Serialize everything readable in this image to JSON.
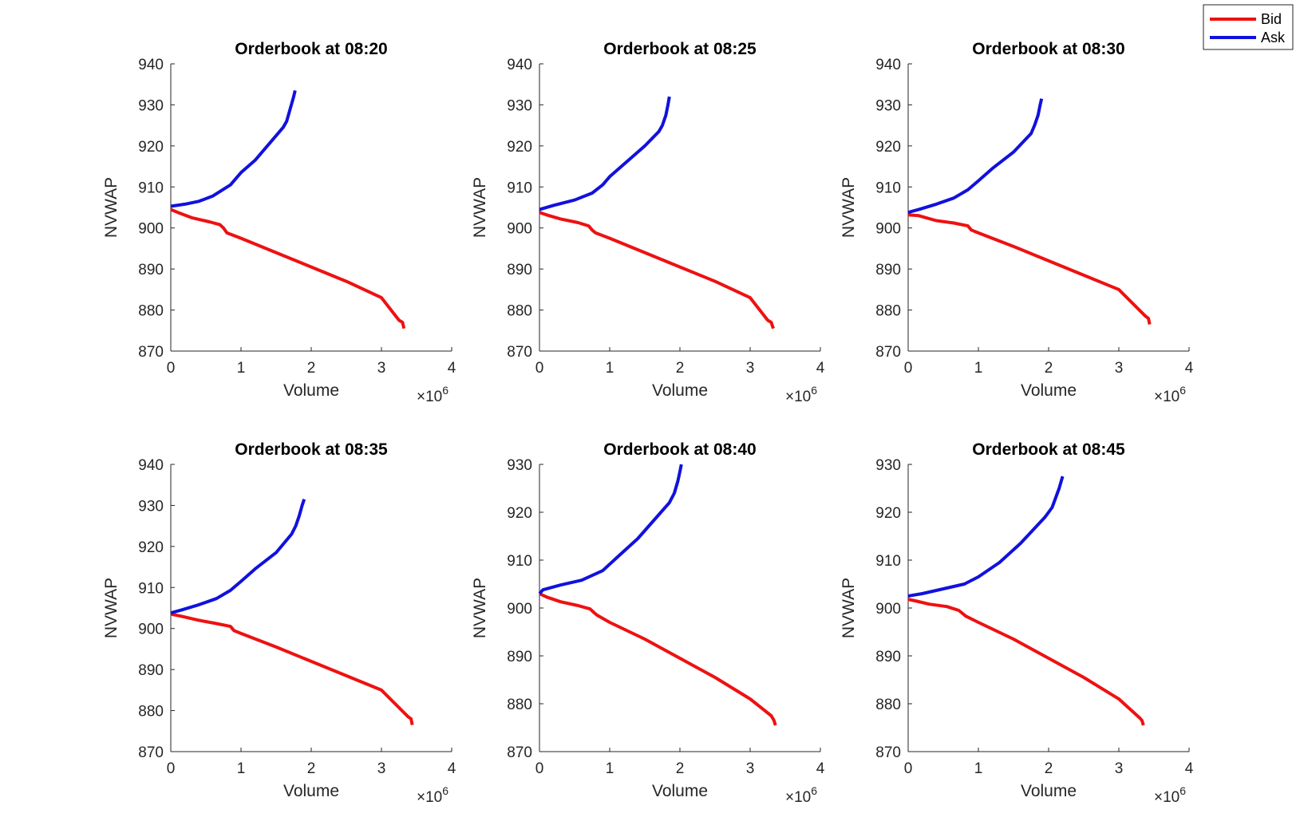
{
  "colors": {
    "bid": "#ee1111",
    "ask": "#1111dd",
    "axis": "#262626",
    "background": "#ffffff"
  },
  "legend": {
    "placement": "top-right",
    "entries": [
      "Bid",
      "Ask"
    ]
  },
  "chart_data": [
    {
      "type": "line",
      "title": "Orderbook at 08:20",
      "xlabel": "Volume",
      "ylabel": "NVWAP",
      "x_multiplier": "×10^6",
      "xlim": [
        0,
        4
      ],
      "ylim": [
        870,
        940
      ],
      "xticks": [
        0,
        1,
        2,
        3,
        4
      ],
      "yticks": [
        870,
        880,
        890,
        900,
        910,
        920,
        930,
        940
      ],
      "grid": false,
      "series": [
        {
          "name": "Bid",
          "x": [
            0,
            0.1,
            0.3,
            0.55,
            0.7,
            0.75,
            0.8,
            1.0,
            1.5,
            2.0,
            2.5,
            3.0,
            3.25,
            3.3,
            3.32
          ],
          "y": [
            904.5,
            903.8,
            902.5,
            901.5,
            900.8,
            900.0,
            898.8,
            897.5,
            894.0,
            890.5,
            887.0,
            883.0,
            877.5,
            877.0,
            875.5
          ]
        },
        {
          "name": "Ask",
          "x": [
            0,
            0.2,
            0.4,
            0.6,
            0.85,
            1.0,
            1.2,
            1.4,
            1.6,
            1.65,
            1.7,
            1.75,
            1.77
          ],
          "y": [
            905.3,
            905.8,
            906.5,
            907.8,
            910.5,
            913.5,
            916.5,
            920.5,
            924.5,
            926.0,
            929.0,
            932.0,
            933.5
          ]
        }
      ]
    },
    {
      "type": "line",
      "title": "Orderbook at 08:25",
      "xlabel": "Volume",
      "ylabel": "NVWAP",
      "x_multiplier": "×10^6",
      "xlim": [
        0,
        4
      ],
      "ylim": [
        870,
        940
      ],
      "xticks": [
        0,
        1,
        2,
        3,
        4
      ],
      "yticks": [
        870,
        880,
        890,
        900,
        910,
        920,
        930,
        940
      ],
      "grid": false,
      "series": [
        {
          "name": "Bid",
          "x": [
            0,
            0.1,
            0.3,
            0.55,
            0.7,
            0.75,
            0.8,
            1.0,
            1.5,
            2.0,
            2.5,
            3.0,
            3.25,
            3.3,
            3.33
          ],
          "y": [
            903.8,
            903.2,
            902.2,
            901.3,
            900.5,
            899.5,
            898.8,
            897.5,
            894.0,
            890.5,
            887.0,
            883.0,
            877.5,
            877.0,
            875.5
          ]
        },
        {
          "name": "Ask",
          "x": [
            0,
            0.2,
            0.5,
            0.75,
            0.9,
            1.0,
            1.2,
            1.5,
            1.7,
            1.75,
            1.8,
            1.83,
            1.85
          ],
          "y": [
            904.5,
            905.5,
            906.8,
            908.5,
            910.5,
            912.5,
            915.5,
            920.0,
            923.5,
            925.0,
            927.5,
            930.0,
            932.0
          ]
        }
      ]
    },
    {
      "type": "line",
      "title": "Orderbook at 08:30",
      "xlabel": "Volume",
      "ylabel": "NVWAP",
      "x_multiplier": "×10^6",
      "xlim": [
        0,
        4
      ],
      "ylim": [
        870,
        940
      ],
      "xticks": [
        0,
        1,
        2,
        3,
        4
      ],
      "yticks": [
        870,
        880,
        890,
        900,
        910,
        920,
        930,
        940
      ],
      "grid": false,
      "series": [
        {
          "name": "Bid",
          "x": [
            0,
            0.15,
            0.4,
            0.65,
            0.85,
            0.9,
            1.0,
            1.5,
            2.0,
            2.5,
            3.0,
            3.38,
            3.42,
            3.44
          ],
          "y": [
            903.2,
            903.0,
            901.8,
            901.2,
            900.5,
            899.5,
            898.8,
            895.5,
            892.0,
            888.5,
            885.0,
            878.5,
            878.0,
            876.5
          ]
        },
        {
          "name": "Ask",
          "x": [
            0,
            0.15,
            0.4,
            0.65,
            0.85,
            1.0,
            1.2,
            1.5,
            1.75,
            1.8,
            1.85,
            1.88,
            1.9
          ],
          "y": [
            903.8,
            904.5,
            905.8,
            907.3,
            909.3,
            911.5,
            914.5,
            918.5,
            923.0,
            925.0,
            927.5,
            930.0,
            931.5
          ]
        }
      ]
    },
    {
      "type": "line",
      "title": "Orderbook at 08:35",
      "xlabel": "Volume",
      "ylabel": "NVWAP",
      "x_multiplier": "×10^6",
      "xlim": [
        0,
        4
      ],
      "ylim": [
        870,
        940
      ],
      "xticks": [
        0,
        1,
        2,
        3,
        4
      ],
      "yticks": [
        870,
        880,
        890,
        900,
        910,
        920,
        930,
        940
      ],
      "grid": false,
      "series": [
        {
          "name": "Bid",
          "x": [
            0,
            0.15,
            0.4,
            0.65,
            0.85,
            0.9,
            1.0,
            1.5,
            2.0,
            2.5,
            3.0,
            3.38,
            3.42,
            3.44
          ],
          "y": [
            903.5,
            903.0,
            902.0,
            901.2,
            900.5,
            899.5,
            898.8,
            895.5,
            892.0,
            888.5,
            885.0,
            878.5,
            878.0,
            876.5
          ]
        },
        {
          "name": "Ask",
          "x": [
            0,
            0.15,
            0.4,
            0.65,
            0.85,
            1.0,
            1.2,
            1.5,
            1.72,
            1.78,
            1.83,
            1.87,
            1.9
          ],
          "y": [
            903.8,
            904.5,
            905.8,
            907.3,
            909.3,
            911.5,
            914.5,
            918.5,
            923.0,
            925.0,
            927.5,
            930.0,
            931.5
          ]
        }
      ]
    },
    {
      "type": "line",
      "title": "Orderbook at 08:40",
      "xlabel": "Volume",
      "ylabel": "NVWAP",
      "x_multiplier": "×10^6",
      "xlim": [
        0,
        4
      ],
      "ylim": [
        870,
        930
      ],
      "xticks": [
        0,
        1,
        2,
        3,
        4
      ],
      "yticks": [
        870,
        880,
        890,
        900,
        910,
        920,
        930
      ],
      "grid": false,
      "series": [
        {
          "name": "Bid",
          "x": [
            0,
            0.1,
            0.3,
            0.55,
            0.72,
            0.78,
            0.82,
            1.0,
            1.5,
            2.0,
            2.5,
            3.0,
            3.3,
            3.34,
            3.36
          ],
          "y": [
            903.0,
            902.3,
            901.3,
            900.5,
            899.8,
            899.0,
            898.5,
            897.0,
            893.5,
            889.5,
            885.5,
            881.0,
            877.5,
            876.5,
            875.5
          ]
        },
        {
          "name": "Ask",
          "x": [
            0,
            0.05,
            0.3,
            0.6,
            0.9,
            1.1,
            1.4,
            1.7,
            1.85,
            1.92,
            1.97,
            2.0,
            2.02
          ],
          "y": [
            903.0,
            903.8,
            904.8,
            905.8,
            907.8,
            910.5,
            914.5,
            919.5,
            922.0,
            924.0,
            926.5,
            928.5,
            930.0
          ]
        }
      ]
    },
    {
      "type": "line",
      "title": "Orderbook at 08:45",
      "xlabel": "Volume",
      "ylabel": "NVWAP",
      "x_multiplier": "×10^6",
      "xlim": [
        0,
        4
      ],
      "ylim": [
        870,
        930
      ],
      "xticks": [
        0,
        1,
        2,
        3,
        4
      ],
      "yticks": [
        870,
        880,
        890,
        900,
        910,
        920,
        930
      ],
      "grid": false,
      "series": [
        {
          "name": "Bid",
          "x": [
            0,
            0.1,
            0.3,
            0.55,
            0.72,
            0.78,
            0.82,
            1.0,
            1.5,
            2.0,
            2.5,
            3.0,
            3.3,
            3.33,
            3.35
          ],
          "y": [
            901.8,
            901.5,
            900.8,
            900.3,
            899.5,
            898.8,
            898.3,
            897.0,
            893.5,
            889.5,
            885.5,
            881.0,
            877.0,
            876.5,
            875.5
          ]
        },
        {
          "name": "Ask",
          "x": [
            0,
            0.2,
            0.5,
            0.8,
            1.0,
            1.3,
            1.6,
            1.95,
            2.05,
            2.1,
            2.15,
            2.18,
            2.2
          ],
          "y": [
            902.5,
            903.0,
            904.0,
            905.0,
            906.5,
            909.5,
            913.5,
            919.0,
            921.0,
            923.0,
            925.0,
            926.5,
            927.5
          ]
        }
      ]
    }
  ]
}
